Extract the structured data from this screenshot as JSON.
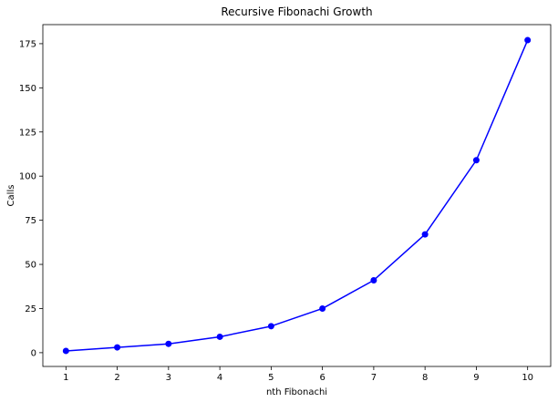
{
  "chart_data": {
    "type": "line",
    "title": "Recursive Fibonachi Growth",
    "xlabel": "nth Fibonachi",
    "ylabel": "Calls",
    "x": [
      1,
      2,
      3,
      4,
      5,
      6,
      7,
      8,
      9,
      10
    ],
    "series": [
      {
        "values": [
          1,
          3,
          5,
          9,
          15,
          25,
          41,
          67,
          109,
          177
        ],
        "color": "#0000ff",
        "marker": "circle"
      }
    ],
    "xticks": [
      1,
      2,
      3,
      4,
      5,
      6,
      7,
      8,
      9,
      10
    ],
    "yticks": [
      0,
      25,
      50,
      75,
      100,
      125,
      150,
      175
    ],
    "xlim": [
      0.55,
      10.45
    ],
    "ylim": [
      -7.8,
      185.8
    ],
    "grid": false,
    "legend": "none"
  }
}
